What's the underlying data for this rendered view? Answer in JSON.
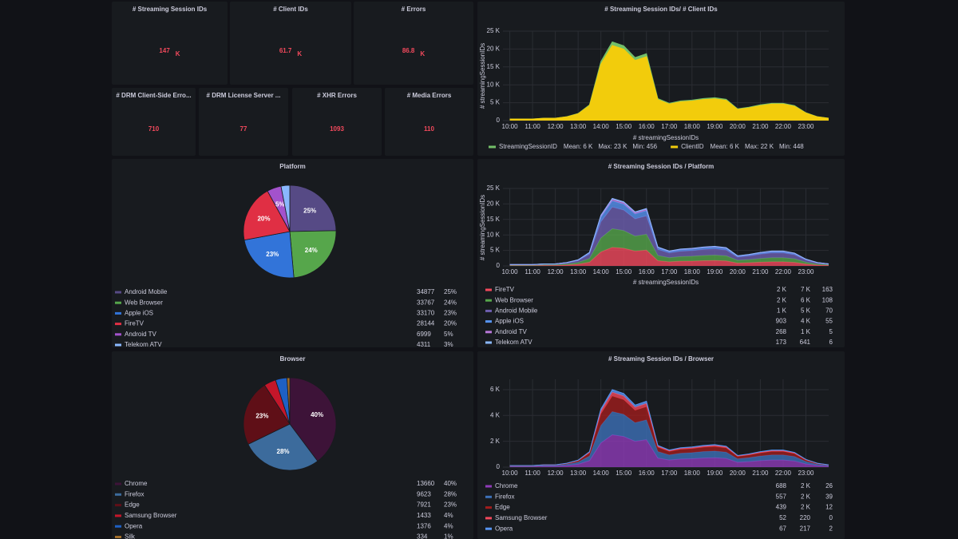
{
  "stats": [
    {
      "title": "# Streaming Session IDs",
      "value": 147,
      "unit": "K"
    },
    {
      "title": "# Client IDs",
      "value": 61.7,
      "unit": "K"
    },
    {
      "title": "# Errors",
      "value": 86.8,
      "unit": "K"
    },
    {
      "title": "# DRM Client-Side Erro...",
      "value": 710
    },
    {
      "title": "# DRM License Server ...",
      "value": 77
    },
    {
      "title": "# XHR Errors",
      "value": 1093
    },
    {
      "title": "# Media Errors",
      "value": 110
    }
  ],
  "chart_data": [
    {
      "type": "area",
      "title": "# Streaming Session IDs/ # Client IDs",
      "stacked": false,
      "ylabel": "# streamingSessionIDs",
      "xlabel": "# streamingSessionIDs",
      "legend": "inline",
      "x": [
        10,
        10.5,
        11,
        11.5,
        12,
        12.5,
        13,
        13.5,
        14,
        14.5,
        15,
        15.5,
        16,
        16.5,
        17,
        17.5,
        18,
        18.5,
        19,
        19.5,
        20,
        20.5,
        21,
        21.5,
        22,
        22.5,
        23,
        23.5,
        24
      ],
      "xlim": [
        9.7,
        24.0
      ],
      "xticks": [
        {
          "value": 10,
          "label": "10:00"
        },
        {
          "value": 11,
          "label": "11:00"
        },
        {
          "value": 12,
          "label": "12:00"
        },
        {
          "value": 13,
          "label": "13:00"
        },
        {
          "value": 14,
          "label": "14:00"
        },
        {
          "value": 15,
          "label": "15:00"
        },
        {
          "value": 16,
          "label": "16:00"
        },
        {
          "value": 17,
          "label": "17:00"
        },
        {
          "value": 18,
          "label": "18:00"
        },
        {
          "value": 19,
          "label": "19:00"
        },
        {
          "value": 20,
          "label": "20:00"
        },
        {
          "value": 21,
          "label": "21:00"
        },
        {
          "value": 22,
          "label": "22:00"
        },
        {
          "value": 23,
          "label": "23:00"
        }
      ],
      "ylim": [
        0,
        25000
      ],
      "yticks": [
        0,
        {
          "value": 5000,
          "label": "5 K"
        },
        {
          "value": 10000,
          "label": "10 K"
        },
        {
          "value": 15000,
          "label": "15 K"
        },
        {
          "value": 20000,
          "label": "20 K"
        },
        {
          "value": 25000,
          "label": "25 K"
        }
      ],
      "grid": true,
      "series": [
        {
          "name": "StreamingSessionID",
          "color": "#73bf69",
          "legend_stats": [
            "Mean: 6 K",
            "Max: 23 K",
            "Min: 456"
          ],
          "values": [
            440,
            440,
            440,
            660,
            660,
            1100,
            1980,
            4400,
            16500,
            22000,
            20900,
            17600,
            18700,
            6160,
            4840,
            5500,
            5720,
            6160,
            6380,
            5940,
            3300,
            3740,
            4400,
            4840,
            4840,
            4180,
            2200,
            1100,
            660
          ]
        },
        {
          "name": "ClientID",
          "color": "#f2cc0c",
          "legend_stats": [
            "Mean: 6 K",
            "Max: 22 K",
            "Min: 448"
          ],
          "values": [
            420,
            420,
            420,
            630,
            630,
            1050,
            1890,
            4200,
            15750,
            21000,
            19950,
            16800,
            17850,
            5880,
            4620,
            5250,
            5460,
            5880,
            6090,
            5670,
            3150,
            3570,
            4200,
            4620,
            4620,
            3990,
            2100,
            1050,
            630
          ]
        }
      ]
    },
    {
      "type": "pie",
      "title": "Platform",
      "categories": [
        "Android Mobile",
        "Web Browser",
        "Apple iOS",
        "FireTV",
        "Android TV",
        "Telekom ATV"
      ],
      "values": [
        34877,
        33767,
        33170,
        28144,
        6999,
        4311
      ],
      "value_labels": [
        "25%",
        "24%",
        "23%",
        "20%",
        "5%",
        "3%"
      ],
      "colors": [
        "#564a85",
        "#56a64b",
        "#3274d9",
        "#e02f44",
        "#a352cc",
        "#8ab8ff"
      ]
    },
    {
      "type": "area",
      "title": "# Streaming Session IDs / Platform",
      "stacked": true,
      "ylabel": "# streamingSessionIDs",
      "xlabel": "# streamingSessionIDs",
      "legend": "table",
      "x": [
        10,
        10.5,
        11,
        11.5,
        12,
        12.5,
        13,
        13.5,
        14,
        14.5,
        15,
        15.5,
        16,
        16.5,
        17,
        17.5,
        18,
        18.5,
        19,
        19.5,
        20,
        20.5,
        21,
        21.5,
        22,
        22.5,
        23,
        23.5,
        24
      ],
      "xlim": [
        9.7,
        24.0
      ],
      "xticks": [
        {
          "value": 10,
          "label": "10:00"
        },
        {
          "value": 11,
          "label": "11:00"
        },
        {
          "value": 12,
          "label": "12:00"
        },
        {
          "value": 13,
          "label": "13:00"
        },
        {
          "value": 14,
          "label": "14:00"
        },
        {
          "value": 15,
          "label": "15:00"
        },
        {
          "value": 16,
          "label": "16:00"
        },
        {
          "value": 17,
          "label": "17:00"
        },
        {
          "value": 18,
          "label": "18:00"
        },
        {
          "value": 19,
          "label": "19:00"
        },
        {
          "value": 20,
          "label": "20:00"
        },
        {
          "value": 21,
          "label": "21:00"
        },
        {
          "value": 22,
          "label": "22:00"
        },
        {
          "value": 23,
          "label": "23:00"
        }
      ],
      "ylim": [
        0,
        25000
      ],
      "yticks": [
        0,
        {
          "value": 5000,
          "label": "5 K"
        },
        {
          "value": 10000,
          "label": "10 K"
        },
        {
          "value": 15000,
          "label": "15 K"
        },
        {
          "value": 20000,
          "label": "20 K"
        },
        {
          "value": 25000,
          "label": "25 K"
        }
      ],
      "grid": true,
      "series": [
        {
          "name": "FireTV",
          "color": "#f2495c",
          "legend_stats": [
            "2 K",
            "7 K",
            "163"
          ],
          "values": [
            120,
            120,
            120,
            180,
            180,
            300,
            540,
            1200,
            4500,
            6000,
            5700,
            4800,
            5100,
            1680,
            1320,
            1500,
            1560,
            1680,
            1740,
            1620,
            900,
            1020,
            1200,
            1320,
            1320,
            1140,
            600,
            300,
            180
          ]
        },
        {
          "name": "Web Browser",
          "color": "#56a64b",
          "legend_stats": [
            "2 K",
            "6 K",
            "108"
          ],
          "values": [
            120,
            120,
            120,
            180,
            180,
            300,
            540,
            1200,
            4500,
            6000,
            5700,
            4800,
            5100,
            1680,
            1320,
            1500,
            1560,
            1680,
            1740,
            1620,
            900,
            1020,
            1200,
            1320,
            1320,
            1140,
            600,
            300,
            180
          ]
        },
        {
          "name": "Android Mobile",
          "color": "#6e5fb0",
          "legend_stats": [
            "1 K",
            "5 K",
            "70"
          ],
          "values": [
            140,
            140,
            140,
            210,
            210,
            350,
            630,
            1400,
            5250,
            7000,
            6650,
            5600,
            5950,
            1960,
            1540,
            1750,
            1820,
            1960,
            2030,
            1890,
            1050,
            1190,
            1400,
            1540,
            1540,
            1330,
            700,
            350,
            210
          ]
        },
        {
          "name": "Apple iOS",
          "color": "#5794f2",
          "legend_stats": [
            "903",
            "4 K",
            "55"
          ],
          "values": [
            40,
            40,
            40,
            60,
            60,
            100,
            180,
            400,
            1500,
            2000,
            1900,
            1600,
            1700,
            560,
            440,
            500,
            520,
            560,
            580,
            540,
            300,
            340,
            400,
            440,
            440,
            380,
            200,
            100,
            60
          ]
        },
        {
          "name": "Android TV",
          "color": "#b877d9",
          "legend_stats": [
            "268",
            "1 K",
            "5"
          ],
          "values": [
            10,
            10,
            10,
            15,
            15,
            25,
            45,
            100,
            375,
            500,
            475,
            400,
            425,
            140,
            110,
            125,
            130,
            140,
            145,
            135,
            75,
            85,
            100,
            110,
            110,
            95,
            50,
            25,
            15
          ]
        },
        {
          "name": "Telekom ATV",
          "color": "#8ab8ff",
          "legend_stats": [
            "173",
            "641",
            "6"
          ],
          "values": [
            6,
            6,
            6,
            9,
            9,
            15,
            27,
            60,
            225,
            300,
            285,
            240,
            255,
            84,
            66,
            75,
            78,
            84,
            87,
            81,
            45,
            51,
            60,
            66,
            66,
            57,
            30,
            15,
            9
          ]
        }
      ]
    },
    {
      "type": "pie",
      "title": "Browser",
      "categories": [
        "Chrome",
        "Firefox",
        "Edge",
        "Samsung Browser",
        "Opera",
        "Silk"
      ],
      "values": [
        13660,
        9623,
        7921,
        1433,
        1376,
        334
      ],
      "value_labels": [
        "40%",
        "28%",
        "23%",
        "4%",
        "4%",
        "1%"
      ],
      "colors": [
        "#3d1338",
        "#3c6b9c",
        "#5f0f17",
        "#c4162a",
        "#1f60c4",
        "#a16d2a"
      ]
    },
    {
      "type": "area",
      "title": "# Streaming Session IDs / Browser",
      "stacked": true,
      "legend": "table",
      "x": [
        10,
        10.5,
        11,
        11.5,
        12,
        12.5,
        13,
        13.5,
        14,
        14.5,
        15,
        15.5,
        16,
        16.5,
        17,
        17.5,
        18,
        18.5,
        19,
        19.5,
        20,
        20.5,
        21,
        21.5,
        22,
        22.5,
        23,
        23.5,
        24
      ],
      "xlim": [
        9.7,
        24.0
      ],
      "xticks": [
        {
          "value": 10,
          "label": "10:00"
        },
        {
          "value": 11,
          "label": "11:00"
        },
        {
          "value": 12,
          "label": "12:00"
        },
        {
          "value": 13,
          "label": "13:00"
        },
        {
          "value": 14,
          "label": "14:00"
        },
        {
          "value": 15,
          "label": "15:00"
        },
        {
          "value": 16,
          "label": "16:00"
        },
        {
          "value": 17,
          "label": "17:00"
        },
        {
          "value": 18,
          "label": "18:00"
        },
        {
          "value": 19,
          "label": "19:00"
        },
        {
          "value": 20,
          "label": "20:00"
        },
        {
          "value": 21,
          "label": "21:00"
        },
        {
          "value": 22,
          "label": "22:00"
        },
        {
          "value": 23,
          "label": "23:00"
        }
      ],
      "ylim": [
        0,
        6800
      ],
      "yticks": [
        0,
        {
          "value": 2000,
          "label": "2 K"
        },
        {
          "value": 4000,
          "label": "4 K"
        },
        {
          "value": 6000,
          "label": "6 K"
        }
      ],
      "grid": true,
      "series": [
        {
          "name": "Chrome",
          "color": "#8f3bb8",
          "legend_stats": [
            "688",
            "2 K",
            "26"
          ],
          "values": [
            50,
            50,
            50,
            75,
            75,
            125,
            225,
            500,
            1875,
            2500,
            2375,
            2000,
            2125,
            700,
            550,
            625,
            650,
            700,
            725,
            675,
            375,
            425,
            500,
            550,
            550,
            475,
            250,
            125,
            75
          ]
        },
        {
          "name": "Firefox",
          "color": "#3d71b8",
          "legend_stats": [
            "557",
            "2 K",
            "39"
          ],
          "values": [
            36,
            36,
            36,
            54,
            54,
            90,
            162,
            360,
            1350,
            1800,
            1710,
            1440,
            1530,
            504,
            396,
            450,
            468,
            504,
            522,
            486,
            270,
            306,
            360,
            396,
            396,
            342,
            180,
            90,
            54
          ]
        },
        {
          "name": "Edge",
          "color": "#a01d1d",
          "legend_stats": [
            "439",
            "2 K",
            "12"
          ],
          "values": [
            24,
            24,
            24,
            36,
            36,
            60,
            108,
            240,
            900,
            1200,
            1140,
            960,
            1020,
            336,
            264,
            300,
            312,
            336,
            348,
            324,
            180,
            204,
            240,
            264,
            264,
            228,
            120,
            60,
            36
          ]
        },
        {
          "name": "Samsung Browser",
          "color": "#f2495c",
          "legend_stats": [
            "52",
            "220",
            "0"
          ],
          "values": [
            6,
            6,
            6,
            9,
            9,
            15,
            27,
            60,
            225,
            300,
            285,
            240,
            255,
            84,
            66,
            75,
            78,
            84,
            87,
            81,
            45,
            51,
            60,
            66,
            66,
            57,
            30,
            15,
            9
          ]
        },
        {
          "name": "Opera",
          "color": "#5794f2",
          "legend_stats": [
            "67",
            "217",
            "2"
          ],
          "values": [
            4,
            4,
            4,
            6,
            6,
            10,
            18,
            40,
            150,
            200,
            190,
            160,
            170,
            56,
            44,
            50,
            52,
            56,
            58,
            54,
            30,
            34,
            40,
            44,
            44,
            38,
            20,
            10,
            6
          ]
        }
      ]
    }
  ]
}
